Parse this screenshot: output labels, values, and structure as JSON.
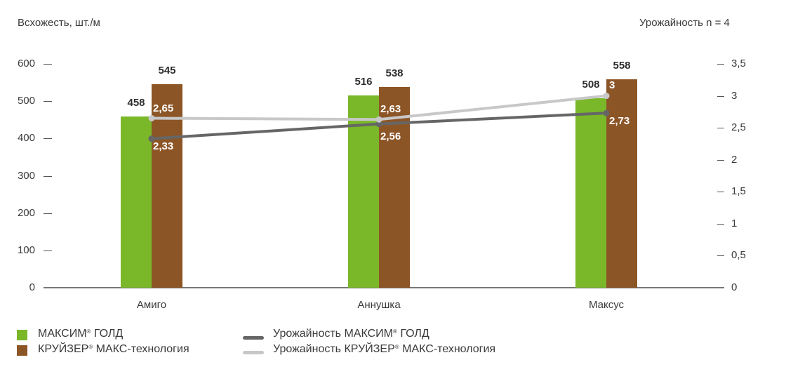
{
  "chart_data": {
    "type": "bar+line",
    "left_axis_title": "Всхожесть, шт./м",
    "right_axis_title": "Урожайность n = 4",
    "categories": [
      "Амиго",
      "Аннушка",
      "Максус"
    ],
    "left_ylim": [
      0,
      600
    ],
    "left_ticks": [
      "600",
      "500",
      "400",
      "300",
      "200",
      "100",
      "0"
    ],
    "right_ylim": [
      0,
      3.5
    ],
    "right_ticks": [
      "3,5",
      "3",
      "2,5",
      "2",
      "1,5",
      "1",
      "0,5",
      "0"
    ],
    "bar_series": [
      {
        "name": "МАКСИМ® ГОЛД",
        "color": "#7ab829",
        "values": [
          458,
          516,
          508
        ],
        "labels": [
          "458",
          "516",
          "508"
        ]
      },
      {
        "name": "КРУЙЗЕР® МАКС-технология",
        "color": "#8c5526",
        "values": [
          545,
          538,
          558
        ],
        "labels": [
          "545",
          "538",
          "558"
        ]
      }
    ],
    "line_series": [
      {
        "name": "Урожайность МАКСИМ® ГОЛД",
        "color": "#666666",
        "values": [
          2.33,
          2.56,
          2.73
        ],
        "labels": [
          "2,33",
          "2,56",
          "2,73"
        ]
      },
      {
        "name": "Урожайность КРУЙЗЕР® МАКС-технология",
        "color": "#c8c8c8",
        "values": [
          2.65,
          2.63,
          3.0
        ],
        "labels": [
          "2,65",
          "2,63",
          "3"
        ]
      }
    ],
    "grid": false,
    "legend_position": "bottom"
  },
  "legend": {
    "bar1_a": "МАКСИМ",
    "bar1_b": " ГОЛД",
    "bar2_a": "КРУЙЗЕР",
    "bar2_b": " МАКС-технология",
    "line1_a": "Урожайность МАКСИМ",
    "line1_b": " ГОЛД",
    "line2_a": "Урожайность КРУЙЗЕР",
    "line2_b": " МАКС-технология",
    "reg": "®"
  }
}
